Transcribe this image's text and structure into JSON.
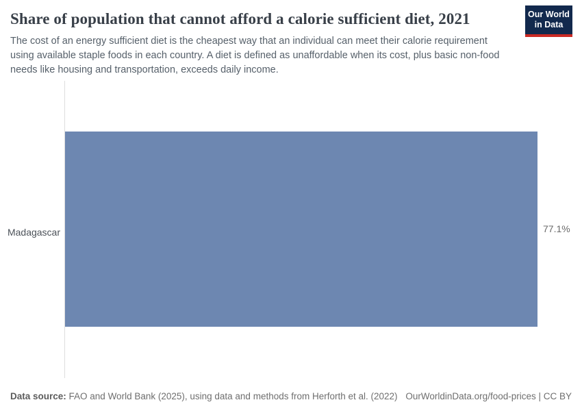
{
  "header": {
    "title": "Share of population that cannot afford a calorie sufficient diet, 2021",
    "subtitle": "The cost of an energy sufficient diet is the cheapest way that an individual can meet their calorie requirement using available staple foods in each country. A diet is defined as unaffordable when its cost, plus basic non-food needs like housing and transportation, exceeds daily income.",
    "logo": {
      "line1": "Our World",
      "line2": "in Data",
      "bg_color": "#12294d",
      "accent_color": "#cb2a24"
    }
  },
  "chart_data": {
    "type": "bar",
    "orientation": "horizontal",
    "title": "Share of population that cannot afford a calorie sufficient diet, 2021",
    "categories": [
      "Madagascar"
    ],
    "values": [
      77.1
    ],
    "value_labels": [
      "77.1%"
    ],
    "xlim": [
      0,
      77.1
    ],
    "bar_color": "#6d87b1",
    "axis_line_color": "#dedede",
    "grid": false,
    "legend": "none"
  },
  "footer": {
    "data_source_label": "Data source:",
    "data_source_text": " FAO and World Bank (2025), using data and methods from Herforth et al. (2022)",
    "attribution": "OurWorldinData.org/food-prices | CC BY"
  }
}
